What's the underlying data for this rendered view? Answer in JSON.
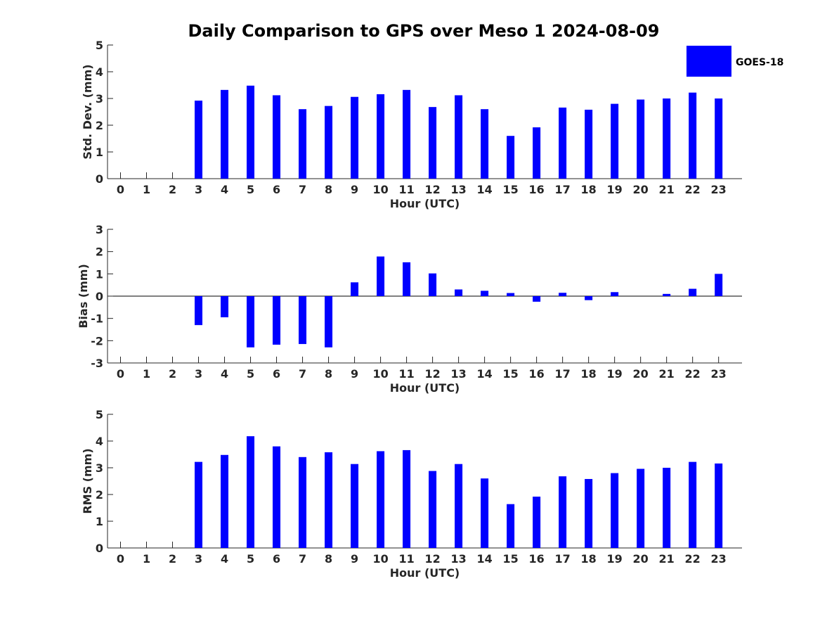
{
  "title": "Daily Comparison to GPS over Meso 1 2024-08-09",
  "colors": {
    "bar": "#0000FF",
    "axis": "#262626",
    "background": "#FFFFFF"
  },
  "legend": {
    "label": "GOES-18",
    "placement": "top-right"
  },
  "chart_data": [
    {
      "type": "bar",
      "title": "Daily Comparison to GPS over Meso 1 2024-08-09",
      "xlabel": "Hour (UTC)",
      "ylabel": "Std. Dev. (mm)",
      "xlim": [
        -0.5,
        23.9
      ],
      "ylim": [
        0,
        5
      ],
      "yticks": [
        "0",
        "1",
        "2",
        "3",
        "4",
        "5"
      ],
      "categories": [
        "0",
        "1",
        "2",
        "3",
        "4",
        "5",
        "6",
        "7",
        "8",
        "9",
        "10",
        "11",
        "12",
        "13",
        "14",
        "15",
        "16",
        "17",
        "18",
        "19",
        "20",
        "21",
        "22",
        "23"
      ],
      "series": [
        {
          "name": "GOES-18",
          "values": [
            null,
            null,
            null,
            2.92,
            3.32,
            3.48,
            3.12,
            2.6,
            2.72,
            3.06,
            3.16,
            3.32,
            2.68,
            3.12,
            2.6,
            1.6,
            1.92,
            2.66,
            2.58,
            2.8,
            2.96,
            3.0,
            3.22,
            3.0
          ]
        }
      ]
    },
    {
      "type": "bar",
      "xlabel": "Hour (UTC)",
      "ylabel": "Bias (mm)",
      "xlim": [
        -0.5,
        23.9
      ],
      "ylim": [
        -3,
        3
      ],
      "yticks": [
        "-3",
        "-2",
        "-1",
        "0",
        "1",
        "2",
        "3"
      ],
      "categories": [
        "0",
        "1",
        "2",
        "3",
        "4",
        "5",
        "6",
        "7",
        "8",
        "9",
        "10",
        "11",
        "12",
        "13",
        "14",
        "15",
        "16",
        "17",
        "18",
        "19",
        "20",
        "21",
        "22",
        "23"
      ],
      "series": [
        {
          "name": "GOES-18",
          "values": [
            null,
            null,
            null,
            -1.3,
            -0.95,
            -2.3,
            -2.18,
            -2.15,
            -2.3,
            0.62,
            1.78,
            1.52,
            1.02,
            0.3,
            0.24,
            0.14,
            -0.25,
            0.15,
            -0.18,
            0.18,
            0.0,
            0.1,
            0.33,
            1.0
          ]
        }
      ]
    },
    {
      "type": "bar",
      "xlabel": "Hour (UTC)",
      "ylabel": "RMS (mm)",
      "xlim": [
        -0.5,
        23.9
      ],
      "ylim": [
        0,
        5
      ],
      "yticks": [
        "0",
        "1",
        "2",
        "3",
        "4",
        "5"
      ],
      "categories": [
        "0",
        "1",
        "2",
        "3",
        "4",
        "5",
        "6",
        "7",
        "8",
        "9",
        "10",
        "11",
        "12",
        "13",
        "14",
        "15",
        "16",
        "17",
        "18",
        "19",
        "20",
        "21",
        "22",
        "23"
      ],
      "series": [
        {
          "name": "GOES-18",
          "values": [
            null,
            null,
            null,
            3.22,
            3.48,
            4.18,
            3.8,
            3.4,
            3.58,
            3.14,
            3.62,
            3.66,
            2.88,
            3.14,
            2.6,
            1.64,
            1.92,
            2.68,
            2.58,
            2.8,
            2.96,
            3.0,
            3.22,
            3.16
          ]
        }
      ]
    }
  ]
}
